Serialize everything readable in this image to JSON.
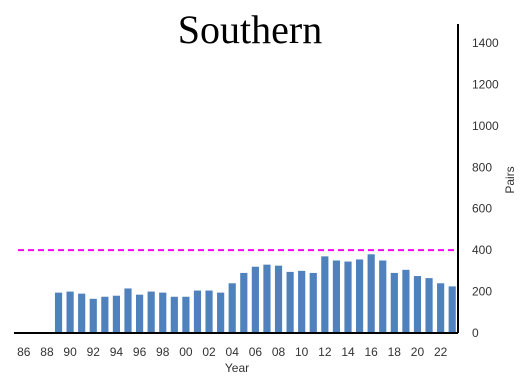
{
  "chart_data": {
    "type": "bar",
    "title": "Southern",
    "xlabel": "Year",
    "ylabel": "Pairs",
    "ylim": [
      0,
      1400
    ],
    "y_ticks": [
      0,
      200,
      400,
      600,
      800,
      1000,
      1200,
      1400
    ],
    "x_tick_labels": [
      "86",
      "88",
      "90",
      "92",
      "94",
      "96",
      "98",
      "00",
      "02",
      "04",
      "06",
      "08",
      "10",
      "12",
      "14",
      "16",
      "18",
      "20",
      "22"
    ],
    "categories": [
      "86",
      "87",
      "88",
      "89",
      "90",
      "91",
      "92",
      "93",
      "94",
      "95",
      "96",
      "97",
      "98",
      "99",
      "00",
      "01",
      "02",
      "03",
      "04",
      "05",
      "06",
      "07",
      "08",
      "09",
      "10",
      "11",
      "12",
      "13",
      "14",
      "15",
      "16",
      "17",
      "18",
      "19",
      "20",
      "21",
      "22",
      "23"
    ],
    "values": [
      null,
      null,
      null,
      195,
      200,
      190,
      165,
      175,
      180,
      215,
      185,
      200,
      195,
      175,
      175,
      205,
      205,
      195,
      240,
      290,
      320,
      330,
      325,
      295,
      300,
      290,
      370,
      350,
      345,
      355,
      380,
      350,
      290,
      305,
      275,
      265,
      240,
      225
    ],
    "reference_line": {
      "value": 400,
      "color": "#ff00ff",
      "style": "dashed"
    },
    "bar_color": "#4f81bd",
    "grid": false,
    "y_axis_position": "right"
  }
}
